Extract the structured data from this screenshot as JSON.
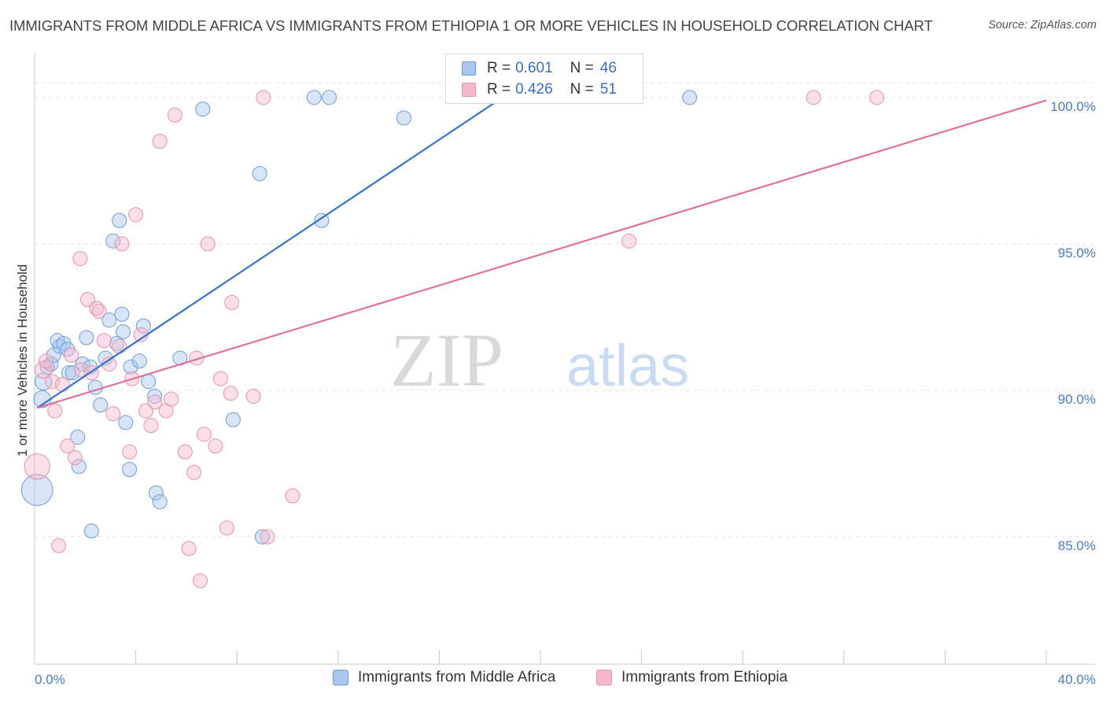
{
  "title": "IMMIGRANTS FROM MIDDLE AFRICA VS IMMIGRANTS FROM ETHIOPIA 1 OR MORE VEHICLES IN HOUSEHOLD CORRELATION CHART",
  "source": "Source: ZipAtlas.com",
  "watermark": {
    "zip": "ZIP",
    "atlas": "atlas"
  },
  "legend": {
    "rows": [
      {
        "r_label": "R =",
        "r_value": "0.601",
        "n_label": "N =",
        "n_value": "46"
      },
      {
        "r_label": "R =",
        "r_value": "0.426",
        "n_label": "N =",
        "n_value": "51"
      }
    ]
  },
  "colors": {
    "blue_fill": "#a9c6ee",
    "blue_stroke": "#6f9bd8",
    "blue_line": "#3574c9",
    "pink_fill": "#f6b9cc",
    "pink_stroke": "#e892ae",
    "pink_line": "#e0709a",
    "grid": "#e4e4e4",
    "tick_text": "#4a7cc4"
  },
  "chart_data": {
    "type": "scatter",
    "title": "IMMIGRANTS FROM MIDDLE AFRICA VS IMMIGRANTS FROM ETHIOPIA 1 OR MORE VEHICLES IN HOUSEHOLD CORRELATION CHART",
    "xlabel": "",
    "ylabel": "1 or more Vehicles in Household",
    "xlim": [
      0,
      40
    ],
    "ylim": [
      80.65,
      101.5
    ],
    "x_tick_labels": [
      "0.0%",
      "40.0%"
    ],
    "y_ticks": [
      85,
      90,
      95,
      100
    ],
    "y_tick_labels": [
      "85.0%",
      "90.0%",
      "95.0%",
      "100.0%"
    ],
    "grid": true,
    "series": [
      {
        "name": "Immigrants from Middle Africa",
        "color": "blue",
        "R": 0.601,
        "N": 46,
        "trend": {
          "x0": 0.1,
          "y0": 89.4,
          "x1": 18.5,
          "y1": 100.0
        },
        "points": [
          {
            "x": 0.1,
            "y": 86.6,
            "s": 2.2
          },
          {
            "x": 0.3,
            "y": 89.7,
            "s": 1.2
          },
          {
            "x": 0.35,
            "y": 90.3,
            "s": 1.2
          },
          {
            "x": 0.5,
            "y": 90.8,
            "s": 1
          },
          {
            "x": 0.65,
            "y": 90.9,
            "s": 1
          },
          {
            "x": 0.75,
            "y": 91.2,
            "s": 1
          },
          {
            "x": 0.9,
            "y": 91.7,
            "s": 1
          },
          {
            "x": 1.0,
            "y": 91.5,
            "s": 1
          },
          {
            "x": 1.15,
            "y": 91.6,
            "s": 1
          },
          {
            "x": 1.3,
            "y": 91.4,
            "s": 1
          },
          {
            "x": 1.35,
            "y": 90.6,
            "s": 1
          },
          {
            "x": 1.5,
            "y": 90.6,
            "s": 1
          },
          {
            "x": 1.7,
            "y": 88.4,
            "s": 1
          },
          {
            "x": 1.75,
            "y": 87.4,
            "s": 1
          },
          {
            "x": 1.9,
            "y": 90.9,
            "s": 1
          },
          {
            "x": 2.05,
            "y": 91.8,
            "s": 1
          },
          {
            "x": 2.2,
            "y": 90.8,
            "s": 1
          },
          {
            "x": 2.25,
            "y": 85.2,
            "s": 1
          },
          {
            "x": 2.4,
            "y": 90.1,
            "s": 1
          },
          {
            "x": 2.6,
            "y": 89.5,
            "s": 1
          },
          {
            "x": 2.8,
            "y": 91.1,
            "s": 1
          },
          {
            "x": 2.95,
            "y": 92.4,
            "s": 1
          },
          {
            "x": 3.1,
            "y": 95.1,
            "s": 1
          },
          {
            "x": 3.25,
            "y": 91.6,
            "s": 1
          },
          {
            "x": 3.35,
            "y": 95.8,
            "s": 1
          },
          {
            "x": 3.45,
            "y": 92.6,
            "s": 1
          },
          {
            "x": 3.5,
            "y": 92.0,
            "s": 1
          },
          {
            "x": 3.6,
            "y": 88.9,
            "s": 1
          },
          {
            "x": 3.75,
            "y": 87.3,
            "s": 1
          },
          {
            "x": 3.8,
            "y": 90.8,
            "s": 1
          },
          {
            "x": 4.15,
            "y": 91.0,
            "s": 1
          },
          {
            "x": 4.3,
            "y": 92.2,
            "s": 1
          },
          {
            "x": 4.5,
            "y": 90.3,
            "s": 1
          },
          {
            "x": 4.75,
            "y": 89.8,
            "s": 1
          },
          {
            "x": 4.8,
            "y": 86.5,
            "s": 1
          },
          {
            "x": 4.95,
            "y": 86.2,
            "s": 1
          },
          {
            "x": 5.75,
            "y": 91.1,
            "s": 1
          },
          {
            "x": 6.65,
            "y": 99.6,
            "s": 1
          },
          {
            "x": 7.85,
            "y": 89.0,
            "s": 1
          },
          {
            "x": 8.9,
            "y": 97.4,
            "s": 1
          },
          {
            "x": 9.0,
            "y": 85.0,
            "s": 1
          },
          {
            "x": 11.05,
            "y": 100.0,
            "s": 1
          },
          {
            "x": 11.35,
            "y": 95.8,
            "s": 1
          },
          {
            "x": 11.65,
            "y": 100.0,
            "s": 1
          },
          {
            "x": 14.6,
            "y": 99.3,
            "s": 1
          },
          {
            "x": 25.9,
            "y": 100.0,
            "s": 1
          }
        ]
      },
      {
        "name": "Immigrants from Ethiopia",
        "color": "pink",
        "R": 0.426,
        "N": 51,
        "trend": {
          "x0": 0.1,
          "y0": 89.4,
          "x1": 40.0,
          "y1": 99.9
        },
        "points": [
          {
            "x": 0.1,
            "y": 87.4,
            "s": 1.8
          },
          {
            "x": 0.35,
            "y": 90.7,
            "s": 1.2
          },
          {
            "x": 0.45,
            "y": 91.0,
            "s": 1
          },
          {
            "x": 0.7,
            "y": 90.3,
            "s": 1
          },
          {
            "x": 0.8,
            "y": 89.3,
            "s": 1
          },
          {
            "x": 0.95,
            "y": 84.7,
            "s": 1
          },
          {
            "x": 1.1,
            "y": 90.2,
            "s": 1
          },
          {
            "x": 1.3,
            "y": 88.1,
            "s": 1
          },
          {
            "x": 1.45,
            "y": 91.2,
            "s": 1
          },
          {
            "x": 1.6,
            "y": 87.7,
            "s": 1
          },
          {
            "x": 1.8,
            "y": 94.5,
            "s": 1
          },
          {
            "x": 1.85,
            "y": 90.7,
            "s": 1
          },
          {
            "x": 2.1,
            "y": 93.1,
            "s": 1
          },
          {
            "x": 2.25,
            "y": 90.6,
            "s": 1
          },
          {
            "x": 2.45,
            "y": 92.8,
            "s": 1
          },
          {
            "x": 2.55,
            "y": 92.7,
            "s": 1
          },
          {
            "x": 2.75,
            "y": 91.7,
            "s": 1
          },
          {
            "x": 2.95,
            "y": 90.9,
            "s": 1
          },
          {
            "x": 3.1,
            "y": 89.2,
            "s": 1
          },
          {
            "x": 3.35,
            "y": 91.5,
            "s": 1
          },
          {
            "x": 3.45,
            "y": 95.0,
            "s": 1
          },
          {
            "x": 3.75,
            "y": 87.9,
            "s": 1
          },
          {
            "x": 3.85,
            "y": 90.4,
            "s": 1
          },
          {
            "x": 4.0,
            "y": 96.0,
            "s": 1
          },
          {
            "x": 4.2,
            "y": 91.9,
            "s": 1
          },
          {
            "x": 4.4,
            "y": 89.3,
            "s": 1
          },
          {
            "x": 4.6,
            "y": 88.8,
            "s": 1
          },
          {
            "x": 4.75,
            "y": 89.6,
            "s": 1
          },
          {
            "x": 4.95,
            "y": 98.5,
            "s": 1
          },
          {
            "x": 5.2,
            "y": 89.3,
            "s": 1
          },
          {
            "x": 5.4,
            "y": 89.7,
            "s": 1
          },
          {
            "x": 5.55,
            "y": 99.4,
            "s": 1
          },
          {
            "x": 5.95,
            "y": 87.9,
            "s": 1
          },
          {
            "x": 6.1,
            "y": 84.6,
            "s": 1
          },
          {
            "x": 6.3,
            "y": 87.2,
            "s": 1
          },
          {
            "x": 6.4,
            "y": 91.1,
            "s": 1
          },
          {
            "x": 6.55,
            "y": 83.5,
            "s": 1
          },
          {
            "x": 6.7,
            "y": 88.5,
            "s": 1
          },
          {
            "x": 6.85,
            "y": 95.0,
            "s": 1
          },
          {
            "x": 7.15,
            "y": 88.1,
            "s": 1
          },
          {
            "x": 7.35,
            "y": 90.4,
            "s": 1
          },
          {
            "x": 7.6,
            "y": 85.3,
            "s": 1
          },
          {
            "x": 7.75,
            "y": 89.9,
            "s": 1
          },
          {
            "x": 7.8,
            "y": 93.0,
            "s": 1
          },
          {
            "x": 8.65,
            "y": 89.8,
            "s": 1
          },
          {
            "x": 9.05,
            "y": 100.0,
            "s": 1
          },
          {
            "x": 9.2,
            "y": 85.0,
            "s": 1
          },
          {
            "x": 10.2,
            "y": 86.4,
            "s": 1
          },
          {
            "x": 23.5,
            "y": 95.1,
            "s": 1
          },
          {
            "x": 30.8,
            "y": 100.0,
            "s": 1
          },
          {
            "x": 33.3,
            "y": 100.0,
            "s": 1
          }
        ]
      }
    ]
  }
}
